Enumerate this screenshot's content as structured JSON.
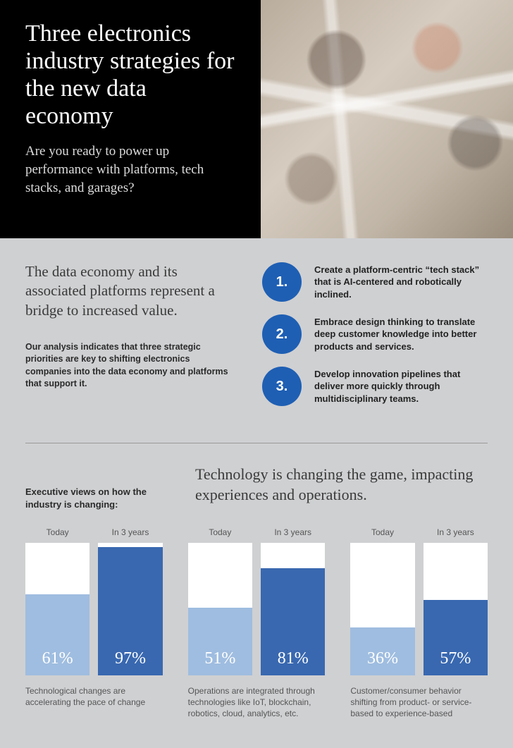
{
  "hero": {
    "title": "Three electronics industry strategies for the new data economy",
    "subtitle": "Are you ready to power up performance with platforms, tech stacks, and garages?"
  },
  "intro": {
    "heading": "The data economy and its associated platforms represent a bridge to increased value.",
    "body": "Our analysis indicates that three strategic priorities are key to shifting electronics companies into the data economy and platforms that support it.",
    "items": [
      {
        "num": "1.",
        "text": "Create a platform-centric “tech stack” that is AI-centered and robotically inclined."
      },
      {
        "num": "2.",
        "text": "Embrace design thinking to translate deep customer knowledge into better products and services."
      },
      {
        "num": "3.",
        "text": "Develop innovation pipelines that deliver more quickly through multidisciplinary teams."
      }
    ],
    "circle_color": "#1e5fb4"
  },
  "charts": {
    "exec_label": "Executive views on how the industry is changing:",
    "section_title": "Technology is changing the game, impacting experiences and operations.",
    "today_label": "Today",
    "future_label": "In 3 years",
    "today_color": "#9fbde0",
    "future_color": "#3968b0",
    "bar_bg": "#ffffff",
    "max_pct": 100,
    "groups": [
      {
        "today_pct": 61,
        "future_pct": 97,
        "today_label": "61%",
        "future_label": "97%",
        "caption": "Technological changes are accelerating the pace of change"
      },
      {
        "today_pct": 51,
        "future_pct": 81,
        "today_label": "51%",
        "future_label": "81%",
        "caption": "Operations are integrated through technologies like IoT, blockchain, robotics, cloud, analytics, etc."
      },
      {
        "today_pct": 36,
        "future_pct": 57,
        "today_label": "36%",
        "future_label": "57%",
        "caption": "Customer/consumer behavior shifting from product- or service-based to experience-based"
      }
    ]
  }
}
